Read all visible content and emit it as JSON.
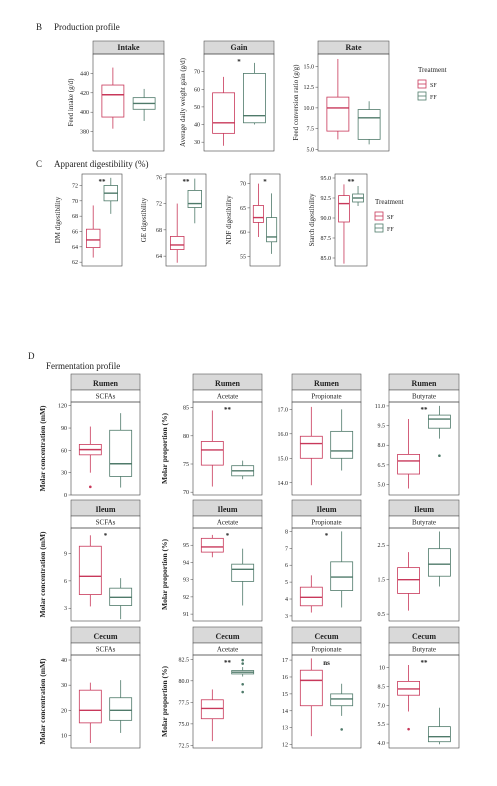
{
  "colors": {
    "SF": "#c8385a",
    "FF": "#4f7a6a"
  },
  "sections": {
    "b_letter": "B",
    "b_title": "Production profile",
    "c_letter": "C",
    "c_title": "Apparent digestibility  (%)",
    "d_letter": "D",
    "d_title": "Fermentation profile"
  },
  "legends": {
    "b": {
      "title": "Treatment",
      "items": [
        "SF",
        "FF"
      ]
    },
    "c": {
      "title": "Treatment",
      "items": [
        "SF",
        "FF"
      ]
    }
  },
  "chart_data": [
    {
      "id": "intake",
      "type": "box",
      "title": "Intake",
      "ylabel": "Feed intake (g/d)",
      "ylim": [
        360,
        460
      ],
      "ticks": [
        "380",
        "400",
        "420",
        "440"
      ],
      "tickvals": [
        380,
        400,
        420,
        440
      ],
      "sig": "",
      "series": [
        {
          "name": "SF",
          "q": [
            383,
            395,
            418,
            428,
            446
          ]
        },
        {
          "name": "FF",
          "q": [
            391,
            403,
            409,
            415,
            424
          ]
        }
      ]
    },
    {
      "id": "gain",
      "type": "box",
      "title": "Gain",
      "ylabel": "Average daily weight gain (g/d)",
      "ylim": [
        25,
        80
      ],
      "ticks": [
        "30",
        "40",
        "50",
        "60",
        "70"
      ],
      "tickvals": [
        30,
        40,
        50,
        60,
        70
      ],
      "sig": "*",
      "series": [
        {
          "name": "SF",
          "q": [
            28,
            35,
            41,
            58,
            67
          ]
        },
        {
          "name": "FF",
          "q": [
            40,
            41,
            45,
            69,
            75
          ]
        }
      ]
    },
    {
      "id": "rate",
      "type": "box",
      "title": "Rate",
      "ylabel": "Feed conversion ratio (g/g)",
      "ylim": [
        4.8,
        16.5
      ],
      "ticks": [
        "5.0",
        "7.5",
        "10.0",
        "12.5",
        "15.0"
      ],
      "tickvals": [
        5,
        7.5,
        10,
        12.5,
        15
      ],
      "sig": "",
      "series": [
        {
          "name": "SF",
          "q": [
            6.2,
            7.2,
            10.0,
            11.3,
            15.9
          ]
        },
        {
          "name": "FF",
          "q": [
            5.6,
            6.2,
            8.8,
            9.8,
            10.8
          ]
        }
      ]
    },
    {
      "id": "dm",
      "type": "box",
      "title": "",
      "ylabel": "DM digestibility",
      "ylim": [
        61.5,
        73.5
      ],
      "ticks": [
        "62",
        "64",
        "66",
        "68",
        "70",
        "72"
      ],
      "tickvals": [
        62,
        64,
        66,
        68,
        70,
        72
      ],
      "sig": "**",
      "series": [
        {
          "name": "SF",
          "q": [
            62.6,
            63.9,
            64.9,
            66.3,
            69.4
          ]
        },
        {
          "name": "FF",
          "q": [
            68.3,
            70.0,
            71.0,
            72.0,
            73.0
          ]
        }
      ]
    },
    {
      "id": "ge",
      "type": "box",
      "title": "",
      "ylabel": "GE digestibility",
      "ylim": [
        62.5,
        76.5
      ],
      "ticks": [
        "64",
        "68",
        "72",
        "76"
      ],
      "tickvals": [
        64,
        68,
        72,
        76
      ],
      "sig": "**",
      "series": [
        {
          "name": "SF",
          "q": [
            63.0,
            65.0,
            65.7,
            67.0,
            72.0
          ]
        },
        {
          "name": "FF",
          "q": [
            69.0,
            71.4,
            72.0,
            74.0,
            75.8
          ]
        }
      ]
    },
    {
      "id": "ndf",
      "type": "box",
      "title": "",
      "ylabel": "NDF digestibility",
      "ylim": [
        53,
        72
      ],
      "ticks": [
        "55",
        "60",
        "65",
        "70"
      ],
      "tickvals": [
        55,
        60,
        65,
        70
      ],
      "sig": "*",
      "series": [
        {
          "name": "SF",
          "q": [
            59.0,
            62.0,
            63.0,
            65.5,
            70.0
          ]
        },
        {
          "name": "FF",
          "q": [
            55.5,
            58.0,
            59.0,
            63.0,
            68.0
          ]
        }
      ]
    },
    {
      "id": "starch",
      "type": "box",
      "title": "",
      "ylabel": "Starch digestibility",
      "ylim": [
        84,
        95.5
      ],
      "ticks": [
        "85.0",
        "87.5",
        "90.0",
        "92.5",
        "95.0"
      ],
      "tickvals": [
        85,
        87.5,
        90,
        92.5,
        95
      ],
      "sig": "**",
      "series": [
        {
          "name": "SF",
          "q": [
            84.3,
            89.5,
            91.8,
            92.8,
            94.2
          ]
        },
        {
          "name": "FF",
          "q": [
            91.5,
            92.0,
            92.5,
            93.0,
            94.0
          ]
        }
      ]
    },
    {
      "id": "rumen-scfa",
      "type": "box",
      "title": "Rumen",
      "subtitle": "SCFAs",
      "ylabel": "Molar concentration (mM)",
      "ylim": [
        0,
        125
      ],
      "ticks": [
        "0",
        "30",
        "60",
        "90",
        "120"
      ],
      "tickvals": [
        0,
        30,
        60,
        90,
        120
      ],
      "sig": "",
      "series": [
        {
          "name": "SF",
          "q": [
            30,
            54,
            61,
            68,
            92
          ],
          "out": [
            11
          ]
        },
        {
          "name": "FF",
          "q": [
            10,
            25,
            42,
            87,
            110
          ]
        }
      ]
    },
    {
      "id": "rumen-acetate",
      "type": "box",
      "title": "Rumen",
      "subtitle": "Acetate",
      "ylabel": "Molar proportion (%)",
      "ylim": [
        69.5,
        86
      ],
      "ticks": [
        "70",
        "75",
        "80",
        "85"
      ],
      "tickvals": [
        70,
        75,
        80,
        85
      ],
      "sig": "**",
      "series": [
        {
          "name": "SF",
          "q": [
            71.0,
            74.8,
            77.5,
            79.0,
            84.5
          ]
        },
        {
          "name": "FF",
          "q": [
            72.3,
            72.9,
            73.8,
            74.7,
            75.6
          ]
        }
      ]
    },
    {
      "id": "rumen-propionate",
      "type": "box",
      "title": "Rumen",
      "subtitle": "Propionate",
      "ylabel": "",
      "ylim": [
        13.5,
        17.3
      ],
      "ticks": [
        "14.0",
        "15.0",
        "16.0",
        "17.0"
      ],
      "tickvals": [
        14,
        15,
        16,
        17
      ],
      "sig": "",
      "series": [
        {
          "name": "SF",
          "q": [
            13.9,
            15.0,
            15.6,
            15.9,
            17.1
          ]
        },
        {
          "name": "FF",
          "q": [
            14.5,
            15.0,
            15.3,
            16.1,
            17.0
          ]
        }
      ]
    },
    {
      "id": "rumen-butyrate",
      "type": "box",
      "title": "Rumen",
      "subtitle": "Butyrate",
      "ylabel": "",
      "ylim": [
        4.2,
        11.3
      ],
      "ticks": [
        "5.0",
        "6.5",
        "8.0",
        "9.5",
        "11.0"
      ],
      "tickvals": [
        5,
        6.5,
        8,
        9.5,
        11
      ],
      "sig": "**",
      "series": [
        {
          "name": "SF",
          "q": [
            4.7,
            5.8,
            6.8,
            7.3,
            10.0
          ]
        },
        {
          "name": "FF",
          "q": [
            8.5,
            9.3,
            10.0,
            10.3,
            11.0
          ],
          "out": [
            7.2
          ]
        }
      ]
    },
    {
      "id": "ileum-scfa",
      "type": "box",
      "title": "Ileum",
      "subtitle": "SCFAs",
      "ylabel": "Molar concentration (mM)",
      "ylim": [
        1.6,
        11.8
      ],
      "ticks": [
        "3",
        "6",
        "9"
      ],
      "tickvals": [
        3,
        6,
        9
      ],
      "sig": "*",
      "series": [
        {
          "name": "SF",
          "q": [
            3.2,
            4.5,
            6.5,
            9.8,
            11.0
          ]
        },
        {
          "name": "FF",
          "q": [
            1.8,
            3.3,
            4.2,
            5.2,
            6.3
          ]
        }
      ]
    },
    {
      "id": "ileum-acetate",
      "type": "box",
      "title": "Ileum",
      "subtitle": "Acetate",
      "ylabel": "Molar proportion (%)",
      "ylim": [
        90.6,
        96
      ],
      "ticks": [
        "91",
        "92",
        "93",
        "94",
        "95"
      ],
      "tickvals": [
        91,
        92,
        93,
        94,
        95
      ],
      "sig": "*",
      "series": [
        {
          "name": "SF",
          "q": [
            94.3,
            94.6,
            94.9,
            95.4,
            95.6
          ]
        },
        {
          "name": "FF",
          "q": [
            91.5,
            92.9,
            93.6,
            93.9,
            94.8
          ]
        }
      ]
    },
    {
      "id": "ileum-propionate",
      "type": "box",
      "title": "Ileum",
      "subtitle": "Propionate",
      "ylabel": "",
      "ylim": [
        2.7,
        8.2
      ],
      "ticks": [
        "3",
        "4",
        "5",
        "6",
        "7",
        "8"
      ],
      "tickvals": [
        3,
        4,
        5,
        6,
        7,
        8
      ],
      "sig": "*",
      "series": [
        {
          "name": "SF",
          "q": [
            3.2,
            3.6,
            4.1,
            4.7,
            5.4
          ]
        },
        {
          "name": "FF",
          "q": [
            3.5,
            4.5,
            5.3,
            6.2,
            8.0
          ]
        }
      ]
    },
    {
      "id": "ileum-butyrate",
      "type": "box",
      "title": "Ileum",
      "subtitle": "Butyrate",
      "ylabel": "",
      "ylim": [
        0.3,
        3.0
      ],
      "ticks": [
        "0.5",
        "1.5",
        "2.5"
      ],
      "tickvals": [
        0.5,
        1.5,
        2.5
      ],
      "sig": "",
      "series": [
        {
          "name": "SF",
          "q": [
            0.6,
            1.1,
            1.5,
            1.85,
            2.3
          ]
        },
        {
          "name": "FF",
          "q": [
            1.3,
            1.6,
            1.95,
            2.4,
            2.9
          ]
        }
      ]
    },
    {
      "id": "cecum-scfa",
      "type": "box",
      "title": "Cecum",
      "subtitle": "SCFAs",
      "ylabel": "Molar concentration (mM)",
      "ylim": [
        5,
        42
      ],
      "ticks": [
        "10",
        "20",
        "30",
        "40"
      ],
      "tickvals": [
        10,
        20,
        30,
        40
      ],
      "sig": "",
      "series": [
        {
          "name": "SF",
          "q": [
            7,
            15,
            20,
            28,
            31
          ]
        },
        {
          "name": "FF",
          "q": [
            11,
            16,
            20,
            25,
            32
          ]
        }
      ]
    },
    {
      "id": "cecum-acetate",
      "type": "box",
      "title": "Cecum",
      "subtitle": "Acetate",
      "ylabel": "Molar proportion (%)",
      "ylim": [
        72.2,
        83
      ],
      "ticks": [
        "72.5",
        "75.0",
        "77.5",
        "80.0",
        "82.5"
      ],
      "tickvals": [
        72.5,
        75,
        77.5,
        80,
        82.5
      ],
      "sig": "**",
      "series": [
        {
          "name": "SF",
          "q": [
            73.0,
            75.6,
            76.8,
            77.8,
            79.0
          ]
        },
        {
          "name": "FF",
          "q": [
            80.5,
            80.8,
            81.0,
            81.2,
            81.6
          ],
          "out": [
            79.6,
            78.7,
            82.0,
            82.4
          ]
        }
      ]
    },
    {
      "id": "cecum-propionate",
      "type": "box",
      "title": "Cecum",
      "subtitle": "Propionate",
      "ylabel": "",
      "ylim": [
        11.8,
        17.3
      ],
      "ticks": [
        "12",
        "13",
        "14",
        "15",
        "16",
        "17"
      ],
      "tickvals": [
        12,
        13,
        14,
        15,
        16,
        17
      ],
      "sig": "ns",
      "series": [
        {
          "name": "SF",
          "q": [
            12.5,
            14.3,
            15.8,
            16.4,
            17.1
          ]
        },
        {
          "name": "FF",
          "q": [
            13.7,
            14.3,
            14.7,
            15.0,
            15.6
          ],
          "out": [
            12.9
          ]
        }
      ]
    },
    {
      "id": "cecum-butyrate",
      "type": "box",
      "title": "Cecum",
      "subtitle": "Butyrate",
      "ylabel": "",
      "ylim": [
        3.6,
        11
      ],
      "ticks": [
        "4.0",
        "5.5",
        "7.0",
        "8.5",
        "10"
      ],
      "tickvals": [
        4,
        5.5,
        7,
        8.5,
        10
      ],
      "sig": "**",
      "series": [
        {
          "name": "SF",
          "q": [
            6.5,
            7.8,
            8.3,
            8.9,
            10.2
          ],
          "out": [
            5.1
          ]
        },
        {
          "name": "FF",
          "q": [
            3.9,
            4.1,
            4.5,
            5.3,
            6.8
          ]
        }
      ]
    }
  ]
}
